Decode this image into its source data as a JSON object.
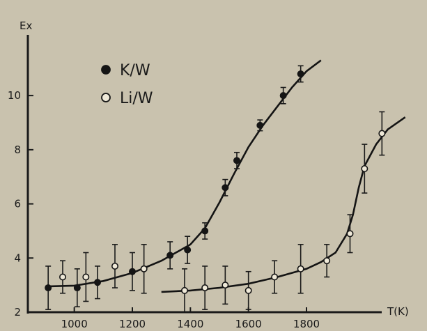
{
  "chart_data": {
    "type": "scatter",
    "ylabel": "Ex",
    "xlabel": "T(K)",
    "xlim": [
      840,
      2160
    ],
    "ylim": [
      2,
      12.5
    ],
    "xticks": [
      1000,
      1200,
      1400,
      1600,
      1800
    ],
    "yticks": [
      2,
      4,
      6,
      8,
      10
    ],
    "grid": false,
    "legend_position": "top-left",
    "series": [
      {
        "name": "K/W",
        "marker": "filled-circle",
        "points": [
          {
            "x": 910,
            "y": 2.9,
            "err": 0.8
          },
          {
            "x": 1010,
            "y": 2.9,
            "err": 0.7
          },
          {
            "x": 1080,
            "y": 3.1,
            "err": 0.6
          },
          {
            "x": 1200,
            "y": 3.5,
            "err": 0.7
          },
          {
            "x": 1330,
            "y": 4.1,
            "err": 0.5
          },
          {
            "x": 1390,
            "y": 4.3,
            "err": 0.5
          },
          {
            "x": 1450,
            "y": 5.0,
            "err": 0.3
          },
          {
            "x": 1520,
            "y": 6.6,
            "err": 0.3
          },
          {
            "x": 1560,
            "y": 7.6,
            "err": 0.3
          },
          {
            "x": 1640,
            "y": 8.9,
            "err": 0.2
          },
          {
            "x": 1720,
            "y": 10.0,
            "err": 0.3
          },
          {
            "x": 1780,
            "y": 10.8,
            "err": 0.3
          }
        ],
        "fit": [
          [
            900,
            2.95
          ],
          [
            1000,
            2.98
          ],
          [
            1100,
            3.15
          ],
          [
            1200,
            3.45
          ],
          [
            1300,
            3.9
          ],
          [
            1400,
            4.5
          ],
          [
            1450,
            5.1
          ],
          [
            1500,
            6.05
          ],
          [
            1550,
            7.1
          ],
          [
            1600,
            8.1
          ],
          [
            1650,
            8.9
          ],
          [
            1700,
            9.6
          ],
          [
            1750,
            10.3
          ],
          [
            1800,
            10.9
          ],
          [
            1850,
            11.3
          ]
        ]
      },
      {
        "name": "Li/W",
        "marker": "open-circle",
        "points": [
          {
            "x": 960,
            "y": 3.3,
            "err": 0.6
          },
          {
            "x": 1040,
            "y": 3.3,
            "err": 0.9
          },
          {
            "x": 1140,
            "y": 3.7,
            "err": 0.8
          },
          {
            "x": 1240,
            "y": 3.6,
            "err": 0.9
          },
          {
            "x": 1380,
            "y": 2.8,
            "err": 0.8
          },
          {
            "x": 1450,
            "y": 2.9,
            "err": 0.8
          },
          {
            "x": 1520,
            "y": 3.0,
            "err": 0.7
          },
          {
            "x": 1600,
            "y": 2.8,
            "err": 0.7
          },
          {
            "x": 1690,
            "y": 3.3,
            "err": 0.6
          },
          {
            "x": 1780,
            "y": 3.6,
            "err": 0.9
          },
          {
            "x": 1870,
            "y": 3.9,
            "err": 0.6
          },
          {
            "x": 1950,
            "y": 4.9,
            "err": 0.7
          },
          {
            "x": 2000,
            "y": 7.3,
            "err": 0.9
          },
          {
            "x": 2060,
            "y": 8.6,
            "err": 0.8
          }
        ],
        "fit": [
          [
            1300,
            2.75
          ],
          [
            1400,
            2.8
          ],
          [
            1500,
            2.9
          ],
          [
            1600,
            3.05
          ],
          [
            1700,
            3.3
          ],
          [
            1800,
            3.6
          ],
          [
            1850,
            3.85
          ],
          [
            1900,
            4.2
          ],
          [
            1940,
            4.9
          ],
          [
            1960,
            5.6
          ],
          [
            1980,
            6.6
          ],
          [
            2000,
            7.4
          ],
          [
            2040,
            8.2
          ],
          [
            2080,
            8.75
          ],
          [
            2140,
            9.2
          ]
        ]
      }
    ]
  }
}
